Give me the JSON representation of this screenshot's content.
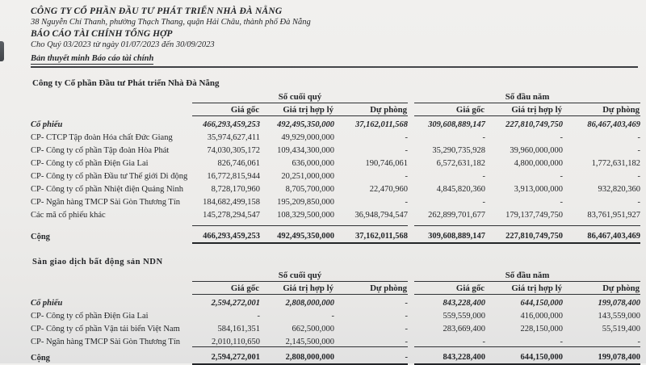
{
  "header": {
    "company": "CÔNG TY CỔ PHẦN ĐẦU TƯ PHÁT TRIỂN NHÀ ĐÀ NẴNG",
    "address": "38 Nguyễn Chí Thanh, phường Thạch Thang, quận Hải Châu, thành phố Đà Nẵng",
    "report_title": "BÁO CÁO TÀI CHÍNH TỔNG HỢP",
    "period": "Cho Quý 03/2023 từ ngày 01/07/2023 đến 30/09/2023",
    "subtitle": "Bản thuyết minh Báo cáo tài chính"
  },
  "tables": [
    {
      "section_title": "Công ty Cổ phần Đầu tư Phát triển Nhà Đà Nẵng",
      "group_headers": [
        "Số cuối quý",
        "Số đầu năm"
      ],
      "col_headers": [
        "Giá gốc",
        "Giá trị hợp lý",
        "Dự phòng"
      ],
      "rows": [
        {
          "label": "Cổ phiếu",
          "emphasis": true,
          "values": [
            "466,293,459,253",
            "492,495,350,000",
            "37,162,011,568",
            "309,608,889,147",
            "227,810,749,750",
            "86,467,403,469"
          ]
        },
        {
          "label": "CP- CTCP Tập đoàn Hóa chất Đức Giang",
          "emphasis": false,
          "values": [
            "35,974,627,411",
            "49,929,000,000",
            "-",
            "-",
            "-",
            "-"
          ]
        },
        {
          "label": "CP- Công ty cổ phần Tập đoàn Hòa Phát",
          "emphasis": false,
          "values": [
            "74,030,305,172",
            "109,434,300,000",
            "-",
            "35,290,735,928",
            "39,960,000,000",
            "-"
          ]
        },
        {
          "label": "CP- Công ty cổ phần Điện Gia Lai",
          "emphasis": false,
          "values": [
            "826,746,061",
            "636,000,000",
            "190,746,061",
            "6,572,631,182",
            "4,800,000,000",
            "1,772,631,182"
          ]
        },
        {
          "label": "CP- Công ty cổ phần Đầu tư Thế giới Di động",
          "emphasis": false,
          "values": [
            "16,772,815,944",
            "20,251,000,000",
            "-",
            "-",
            "-",
            "-"
          ]
        },
        {
          "label": "CP- Công ty cổ phần Nhiệt điện Quảng Ninh",
          "emphasis": false,
          "values": [
            "8,728,170,960",
            "8,705,700,000",
            "22,470,960",
            "4,845,820,360",
            "3,913,000,000",
            "932,820,360"
          ]
        },
        {
          "label": "CP- Ngân hàng TMCP Sài Gòn Thương Tín",
          "emphasis": false,
          "values": [
            "184,682,499,158",
            "195,209,850,000",
            "-",
            "-",
            "-",
            "-"
          ]
        },
        {
          "label": "Các mã cổ phiếu khác",
          "emphasis": false,
          "values": [
            "145,278,294,547",
            "108,329,500,000",
            "36,948,794,547",
            "262,899,701,677",
            "179,137,749,750",
            "83,761,951,927"
          ]
        }
      ],
      "total": {
        "label": "Cộng",
        "values": [
          "466,293,459,253",
          "492,495,350,000",
          "37,162,011,568",
          "309,608,889,147",
          "227,810,749,750",
          "86,467,403,469"
        ]
      }
    },
    {
      "section_title": "Sàn giao dịch bất động sản NDN",
      "group_headers": [
        "Số cuối quý",
        "Số đầu năm"
      ],
      "col_headers": [
        "Giá gốc",
        "Giá trị hợp lý",
        "Dự phòng"
      ],
      "rows": [
        {
          "label": "Cổ phiếu",
          "emphasis": true,
          "values": [
            "2,594,272,001",
            "2,808,000,000",
            "-",
            "843,228,400",
            "644,150,000",
            "199,078,400"
          ]
        },
        {
          "label": "CP- Công ty cổ phần Điện Gia Lai",
          "emphasis": false,
          "values": [
            "-",
            "-",
            "-",
            "559,559,000",
            "416,000,000",
            "143,559,000"
          ]
        },
        {
          "label": "CP- Công ty cổ phần Vận tải biển Việt Nam",
          "emphasis": false,
          "values": [
            "584,161,351",
            "662,500,000",
            "-",
            "283,669,400",
            "228,150,000",
            "55,519,400"
          ]
        },
        {
          "label": "CP- Ngân hàng TMCP Sài Gòn Thương Tín",
          "emphasis": false,
          "values": [
            "2,010,110,650",
            "2,145,500,000",
            "-",
            "-",
            "-",
            "-"
          ]
        }
      ],
      "total": {
        "label": "Cộng",
        "values": [
          "2,594,272,001",
          "2,808,000,000",
          "-",
          "843,228,400",
          "644,150,000",
          "199,078,400"
        ]
      }
    }
  ]
}
